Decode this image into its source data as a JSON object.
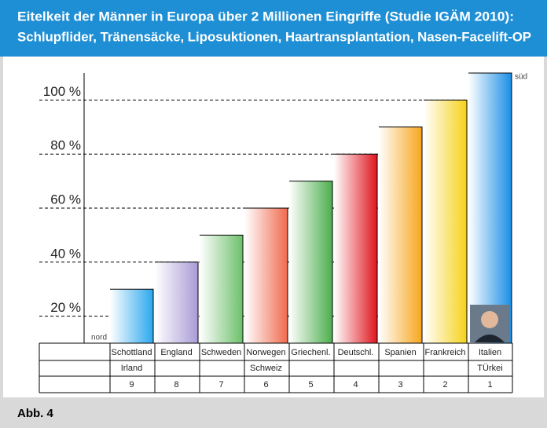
{
  "chart_data": {
    "type": "bar",
    "title": "Eitelkeit der Männer in Europa über 2 Millionen Eingriffe (Studie IGÄM 2010):",
    "subtitle": "Schlupflider, Tränensäcke, Liposuktionen, Haartransplantation, Nasen-Facelift-OP",
    "categories": [
      "Schottland",
      "England",
      "Schweden",
      "Norwegen",
      "Griechenl.",
      "Deutschl.",
      "Spanien",
      "Frankreich",
      "Italien"
    ],
    "categories_2": [
      "Irland",
      null,
      null,
      "Schweiz",
      null,
      null,
      null,
      null,
      "TÜrkei"
    ],
    "ranks": [
      9,
      8,
      7,
      6,
      5,
      4,
      3,
      2,
      1
    ],
    "values": [
      30,
      40,
      50,
      60,
      70,
      80,
      90,
      100,
      110
    ],
    "colors": [
      "#2aa7ee",
      "#a99bd6",
      "#6cc06a",
      "#f06a4e",
      "#4cae4c",
      "#e0141e",
      "#f7a51c",
      "#f6d21a",
      "#1a8ee6"
    ],
    "ylim": [
      10,
      110
    ],
    "yticks": [
      {
        "value": 20,
        "label": "20 %"
      },
      {
        "value": 40,
        "label": "40 %"
      },
      {
        "value": 60,
        "label": "60 %"
      },
      {
        "value": 80,
        "label": "80 %"
      },
      {
        "value": 100,
        "label": "100 %"
      }
    ],
    "grid": true,
    "annotations": [
      "nord",
      "süd"
    ],
    "caption": "Abb. 4"
  }
}
